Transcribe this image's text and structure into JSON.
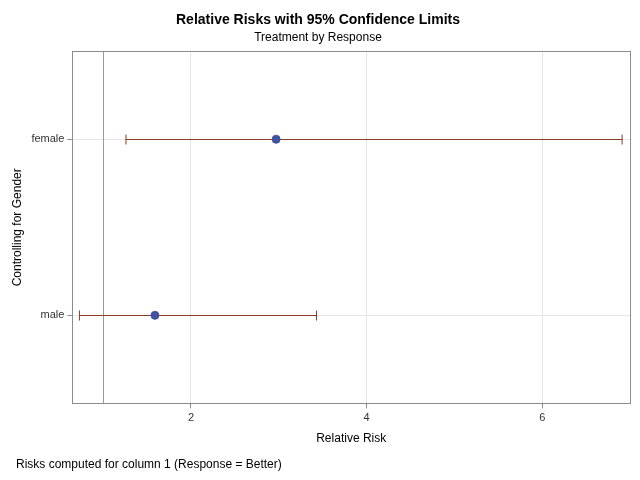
{
  "chart_data": {
    "type": "forest",
    "title": "Relative Risks with 95% Confidence Limits",
    "subtitle": "Treatment by Response",
    "x_label": "Relative Risk",
    "y_label": "Controlling for Gender",
    "footnote": "Risks computed for column 1 (Response = Better)",
    "categories": [
      "female",
      "male"
    ],
    "values": [
      2.97,
      1.59
    ],
    "lower": [
      1.26,
      0.73
    ],
    "upper": [
      6.91,
      3.43
    ],
    "reference_line": 1,
    "color": "#4152a0",
    "error_color": "#8b3a26",
    "xlim": [
      0.65,
      7.0
    ],
    "xticks": [
      2,
      4,
      6
    ],
    "grid": true
  }
}
